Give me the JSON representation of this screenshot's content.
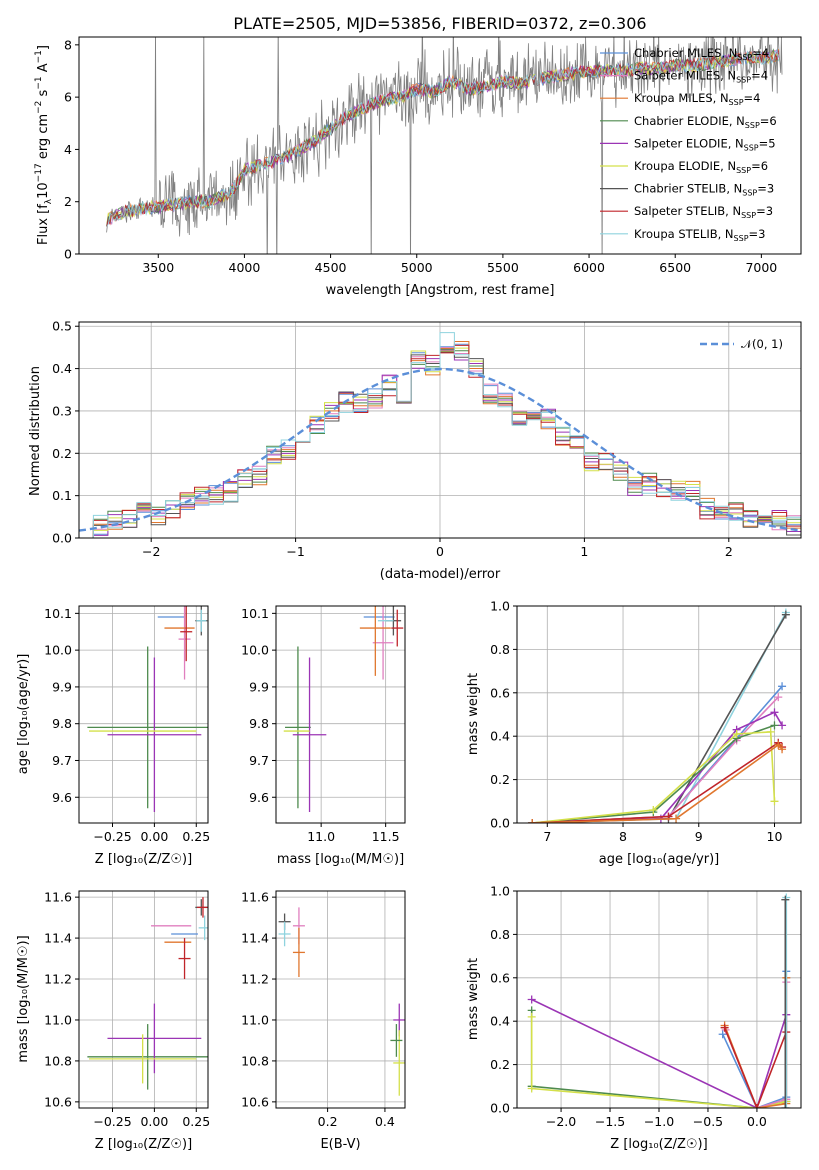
{
  "title": "PLATE=2505, MJD=53856, FIBERID=0372, z=0.306",
  "models": [
    {
      "name": "Chabrier MILES",
      "nssp": "4",
      "color": "#5b8fd8"
    },
    {
      "name": "Salpeter MILES",
      "nssp": "4",
      "color": "#e07fbf"
    },
    {
      "name": "Kroupa MILES",
      "nssp": "4",
      "color": "#e0772f"
    },
    {
      "name": "Chabrier ELODIE",
      "nssp": "6",
      "color": "#4e8a4e"
    },
    {
      "name": "Salpeter ELODIE",
      "nssp": "5",
      "color": "#9b35b5"
    },
    {
      "name": "Kroupa ELODIE",
      "nssp": "6",
      "color": "#d4e04a"
    },
    {
      "name": "Chabrier STELIB",
      "nssp": "3",
      "color": "#555555"
    },
    {
      "name": "Salpeter STELIB",
      "nssp": "3",
      "color": "#c0252a"
    },
    {
      "name": "Kroupa STELIB",
      "nssp": "3",
      "color": "#8fd3de"
    }
  ],
  "spectrum": {
    "xlabel": "wavelength [Angstrom, rest frame]",
    "ylabel_main": "Flux [f",
    "ylabel_sub": "λ",
    "ylabel_rest": "10",
    "ylabel_exp1": "−17",
    "ylabel_mid": " erg cm",
    "ylabel_exp2": "−2",
    "ylabel_mid2": " s",
    "ylabel_exp3": "−1",
    "ylabel_end": " A",
    "ylabel_exp4": "−1",
    "ylabel_close": "]",
    "xticks": [
      "3500",
      "4000",
      "4500",
      "5000",
      "5500",
      "6000",
      "6500",
      "7000"
    ],
    "yticks": [
      "0",
      "2",
      "4",
      "6",
      "8"
    ],
    "legend_sub": "SSP"
  },
  "chart_data": [
    {
      "type": "line",
      "title": "PLATE=2505, MJD=53856, FIBERID=0372, z=0.306",
      "xlabel": "wavelength [Angstrom, rest frame]",
      "ylabel": "Flux [fλ 10^-17 erg cm^-2 s^-1 A^-1]",
      "xlim": [
        3040,
        7230
      ],
      "ylim": [
        0,
        8.3
      ],
      "model_anchor_x": [
        3200,
        3300,
        3400,
        3500,
        3600,
        3700,
        3800,
        3900,
        3950,
        4000,
        4100,
        4200,
        4300,
        4400,
        4500,
        4600,
        4700,
        4800,
        4900,
        5000,
        5100,
        5200,
        5300,
        5400,
        5500,
        5600,
        5700,
        5800,
        5900,
        6000,
        6100,
        6200,
        6300,
        6400,
        6500,
        6600,
        6700,
        6800,
        6900,
        7000,
        7100
      ],
      "model_anchor_y": [
        1.3,
        1.6,
        1.75,
        1.8,
        1.9,
        2.0,
        2.0,
        2.3,
        2.6,
        3.2,
        3.4,
        3.6,
        3.9,
        4.3,
        4.8,
        5.3,
        5.6,
        5.9,
        6.0,
        6.3,
        6.2,
        6.6,
        6.3,
        6.4,
        6.6,
        6.5,
        6.7,
        6.8,
        6.9,
        7.0,
        7.0,
        7.0,
        7.1,
        7.1,
        7.2,
        7.2,
        7.3,
        7.4,
        7.5,
        7.5,
        7.6
      ],
      "data_noise_amplitude": 1.2
    },
    {
      "type": "line",
      "xlabel": "(data-model)/error",
      "ylabel": "Normed distribution",
      "xlim": [
        -2.5,
        2.5
      ],
      "ylim": [
        0,
        0.51
      ],
      "xticks": [
        "−2",
        "−1",
        "0",
        "1",
        "2"
      ],
      "yticks": [
        "0.0",
        "0.1",
        "0.2",
        "0.3",
        "0.4",
        "0.5"
      ],
      "legend": "𝒩(0, 1)",
      "bin_edges": [
        -2.5,
        -2.4,
        -2.3,
        -2.2,
        -2.1,
        -2.0,
        -1.9,
        -1.8,
        -1.7,
        -1.6,
        -1.5,
        -1.4,
        -1.3,
        -1.2,
        -1.1,
        -1.0,
        -0.9,
        -0.8,
        -0.7,
        -0.6,
        -0.5,
        -0.4,
        -0.3,
        -0.2,
        -0.1,
        0.0,
        0.1,
        0.2,
        0.3,
        0.4,
        0.5,
        0.6,
        0.7,
        0.8,
        0.9,
        1.0,
        1.1,
        1.2,
        1.3,
        1.4,
        1.5,
        1.6,
        1.7,
        1.8,
        1.9,
        2.0,
        2.1,
        2.2,
        2.3,
        2.4,
        2.5
      ],
      "hist_values": [
        0.02,
        0.03,
        0.04,
        0.05,
        0.06,
        0.05,
        0.07,
        0.09,
        0.1,
        0.1,
        0.11,
        0.14,
        0.15,
        0.2,
        0.21,
        0.23,
        0.27,
        0.3,
        0.32,
        0.32,
        0.33,
        0.36,
        0.33,
        0.42,
        0.41,
        0.46,
        0.44,
        0.4,
        0.34,
        0.33,
        0.29,
        0.29,
        0.28,
        0.24,
        0.22,
        0.18,
        0.18,
        0.16,
        0.12,
        0.13,
        0.12,
        0.11,
        0.11,
        0.07,
        0.06,
        0.06,
        0.05,
        0.04,
        0.04,
        0.03
      ]
    },
    {
      "type": "scatter",
      "xlabel": "Z [log10(Z/Z☉)]",
      "ylabel": "age [log10(age/yr)]",
      "xlim": [
        -0.45,
        0.32
      ],
      "ylim": [
        9.53,
        10.12
      ],
      "xticks": [
        "−0.25",
        "0.00",
        "0.25"
      ],
      "yticks": [
        "9.6",
        "9.7",
        "9.8",
        "9.9",
        "10.0",
        "10.1"
      ],
      "points": [
        {
          "x": 0.1,
          "xerr": 0.08,
          "y": 10.09,
          "yerr": 0.0,
          "color": "#5b8fd8"
        },
        {
          "x": 0.18,
          "xerr": 0.0,
          "y": 10.03,
          "yerr": 0.11,
          "color": "#e07fbf"
        },
        {
          "x": 0.15,
          "xerr": 0.09,
          "y": 10.06,
          "yerr": 0.0,
          "color": "#e0772f"
        },
        {
          "x": -0.04,
          "xerr": 0.36,
          "y": 9.79,
          "yerr": 0.22,
          "color": "#4e8a4e"
        },
        {
          "x": 0.0,
          "xerr": 0.28,
          "y": 9.77,
          "yerr": 0.21,
          "color": "#9b35b5"
        },
        {
          "x": -0.07,
          "xerr": 0.32,
          "y": 9.78,
          "yerr": 0.0,
          "color": "#d4e04a"
        },
        {
          "x": 0.28,
          "xerr": 0.0,
          "y": 10.08,
          "yerr": 0.04,
          "color": "#555555"
        },
        {
          "x": 0.19,
          "xerr": 0.0,
          "y": 10.05,
          "yerr": 0.08,
          "color": "#c0252a"
        },
        {
          "x": 0.28,
          "xerr": 0.03,
          "y": 10.08,
          "yerr": 0.03,
          "color": "#8fd3de"
        }
      ]
    },
    {
      "type": "scatter",
      "xlabel": "mass [log10(M/M☉)]",
      "xlim": [
        10.65,
        11.65
      ],
      "ylim": [
        9.53,
        10.12
      ],
      "xticks": [
        "11.0",
        "11.5"
      ],
      "yticks": [
        "9.6",
        "9.7",
        "9.8",
        "9.9",
        "10.0",
        "10.1"
      ],
      "points": [
        {
          "x": 11.45,
          "xerr": 0.12,
          "y": 10.09,
          "yerr": 0.0,
          "color": "#5b8fd8"
        },
        {
          "x": 11.48,
          "xerr": 0.08,
          "y": 10.02,
          "yerr": 0.1,
          "color": "#e07fbf"
        },
        {
          "x": 11.42,
          "xerr": 0.12,
          "y": 10.06,
          "yerr": 0.13,
          "color": "#e0772f"
        },
        {
          "x": 10.82,
          "xerr": 0.1,
          "y": 9.79,
          "yerr": 0.22,
          "color": "#4e8a4e"
        },
        {
          "x": 10.91,
          "xerr": 0.13,
          "y": 9.77,
          "yerr": 0.21,
          "color": "#9b35b5"
        },
        {
          "x": 10.81,
          "xerr": 0.1,
          "y": 9.78,
          "yerr": 0.0,
          "color": "#d4e04a"
        },
        {
          "x": 11.56,
          "xerr": 0.06,
          "y": 10.08,
          "yerr": 0.04,
          "color": "#555555"
        },
        {
          "x": 11.59,
          "xerr": 0.0,
          "y": 10.06,
          "yerr": 0.05,
          "color": "#c0252a"
        },
        {
          "x": 11.5,
          "xerr": 0.06,
          "y": 10.08,
          "yerr": 0.0,
          "color": "#8fd3de"
        }
      ]
    },
    {
      "type": "line",
      "xlabel": "age [log10(age/yr)]",
      "ylabel": "mass weight",
      "xlim": [
        6.6,
        10.35
      ],
      "ylim": [
        0,
        1.0
      ],
      "xticks": [
        "7",
        "8",
        "9",
        "10"
      ],
      "yticks": [
        "0.0",
        "0.2",
        "0.4",
        "0.6",
        "0.8",
        "1.0"
      ],
      "series": [
        {
          "color": "#8fd3de",
          "x": [
            6.8,
            8.7,
            10.15
          ],
          "y": [
            0.0,
            0.02,
            0.97
          ]
        },
        {
          "color": "#555555",
          "x": [
            6.8,
            8.6,
            10.15
          ],
          "y": [
            0.0,
            0.02,
            0.96
          ]
        },
        {
          "color": "#5b8fd8",
          "x": [
            6.8,
            8.6,
            10.1
          ],
          "y": [
            0.0,
            0.03,
            0.63
          ]
        },
        {
          "color": "#e07fbf",
          "x": [
            6.8,
            8.6,
            9.5,
            10.05
          ],
          "y": [
            0.0,
            0.03,
            0.38,
            0.58
          ]
        },
        {
          "color": "#9b35b5",
          "x": [
            6.8,
            8.5,
            9.5,
            10.0,
            10.1
          ],
          "y": [
            0.0,
            0.02,
            0.43,
            0.51,
            0.45
          ]
        },
        {
          "color": "#4e8a4e",
          "x": [
            6.8,
            8.4,
            9.5,
            10.0
          ],
          "y": [
            0.0,
            0.05,
            0.39,
            0.45
          ]
        },
        {
          "color": "#d4e04a",
          "x": [
            6.8,
            8.4,
            9.5,
            9.95,
            10.0
          ],
          "y": [
            0.0,
            0.06,
            0.41,
            0.42,
            0.1
          ]
        },
        {
          "color": "#c0252a",
          "x": [
            6.8,
            8.6,
            10.05,
            10.1
          ],
          "y": [
            0.0,
            0.03,
            0.37,
            0.35
          ]
        },
        {
          "color": "#e0772f",
          "x": [
            6.8,
            8.7,
            10.05,
            10.1
          ],
          "y": [
            0.0,
            0.02,
            0.36,
            0.34
          ]
        }
      ]
    },
    {
      "type": "scatter",
      "xlabel": "Z [log10(Z/Z☉)]",
      "ylabel": "mass [log10(M/M☉)]",
      "xlim": [
        -0.45,
        0.32
      ],
      "ylim": [
        10.57,
        11.63
      ],
      "xticks": [
        "−0.25",
        "0.00",
        "0.25"
      ],
      "yticks": [
        "10.6",
        "10.8",
        "11.0",
        "11.2",
        "11.4",
        "11.6"
      ],
      "points": [
        {
          "x": 0.18,
          "xerr": 0.08,
          "y": 11.42,
          "yerr": 0.0,
          "color": "#5b8fd8"
        },
        {
          "x": 0.1,
          "xerr": 0.12,
          "y": 11.46,
          "yerr": 0.0,
          "color": "#e07fbf"
        },
        {
          "x": 0.14,
          "xerr": 0.08,
          "y": 11.38,
          "yerr": 0.0,
          "color": "#e0772f"
        },
        {
          "x": -0.04,
          "xerr": 0.36,
          "y": 10.82,
          "yerr": 0.16,
          "color": "#4e8a4e"
        },
        {
          "x": 0.0,
          "xerr": 0.28,
          "y": 10.91,
          "yerr": 0.17,
          "color": "#9b35b5"
        },
        {
          "x": -0.07,
          "xerr": 0.32,
          "y": 10.81,
          "yerr": 0.12,
          "color": "#d4e04a"
        },
        {
          "x": 0.28,
          "xerr": 0.0,
          "y": 11.55,
          "yerr": 0.04,
          "color": "#555555"
        },
        {
          "x": 0.29,
          "xerr": 0.0,
          "y": 11.55,
          "yerr": 0.05,
          "color": "#c0252a"
        },
        {
          "x": 0.3,
          "xerr": 0.0,
          "y": 11.45,
          "yerr": 0.06,
          "color": "#8fd3de"
        },
        {
          "x": 0.18,
          "xerr": 0.0,
          "y": 11.3,
          "yerr": 0.1,
          "color": "#c0252a"
        }
      ]
    },
    {
      "type": "scatter",
      "xlabel": "E(B-V)",
      "xlim": [
        0.02,
        0.47
      ],
      "ylim": [
        10.57,
        11.63
      ],
      "xticks": [
        "0.2",
        "0.4"
      ],
      "yticks": [
        "10.6",
        "10.8",
        "11.0",
        "11.2",
        "11.4",
        "11.6"
      ],
      "points": [
        {
          "x": 0.05,
          "xerr": 0.0,
          "y": 11.48,
          "yerr": 0.04,
          "color": "#555555"
        },
        {
          "x": 0.05,
          "xerr": 0.0,
          "y": 11.42,
          "yerr": 0.06,
          "color": "#8fd3de"
        },
        {
          "x": 0.1,
          "xerr": 0.0,
          "y": 11.46,
          "yerr": 0.09,
          "color": "#e07fbf"
        },
        {
          "x": 0.1,
          "xerr": 0.0,
          "y": 11.33,
          "yerr": 0.12,
          "color": "#e0772f"
        },
        {
          "x": 0.45,
          "xerr": 0.0,
          "y": 11.0,
          "yerr": 0.08,
          "color": "#9b35b5"
        },
        {
          "x": 0.45,
          "xerr": 0.0,
          "y": 10.79,
          "yerr": 0.16,
          "color": "#d4e04a"
        },
        {
          "x": 0.44,
          "xerr": 0.0,
          "y": 10.9,
          "yerr": 0.08,
          "color": "#4e8a4e"
        }
      ]
    },
    {
      "type": "line",
      "xlabel": "Z [log10(Z/Z☉)]",
      "ylabel": "mass weight",
      "xlim": [
        -2.45,
        0.45
      ],
      "ylim": [
        0,
        1.0
      ],
      "xticks": [
        "−2.0",
        "−1.5",
        "−1.0",
        "−0.5",
        "0.0"
      ],
      "yticks": [
        "0.0",
        "0.2",
        "0.4",
        "0.6",
        "0.8",
        "1.0"
      ],
      "series": [
        {
          "color": "#9b35b5",
          "x": [
            -2.3,
            0.0,
            0.3
          ],
          "y": [
            0.5,
            0.0,
            0.43
          ]
        },
        {
          "color": "#4e8a4e",
          "x": [
            -2.3,
            -2.3,
            0.0,
            0.3
          ],
          "y": [
            0.45,
            0.1,
            0.0,
            0.03
          ]
        },
        {
          "color": "#d4e04a",
          "x": [
            -2.3,
            -2.3,
            0.0,
            0.3
          ],
          "y": [
            0.42,
            0.09,
            0.0,
            0.03
          ]
        },
        {
          "color": "#5b8fd8",
          "x": [
            -0.35,
            0.0,
            0.3,
            0.3
          ],
          "y": [
            0.34,
            0.0,
            0.05,
            0.63
          ]
        },
        {
          "color": "#e07fbf",
          "x": [
            -0.32,
            0.0,
            0.3,
            0.3
          ],
          "y": [
            0.36,
            0.0,
            0.04,
            0.58
          ]
        },
        {
          "color": "#e0772f",
          "x": [
            -0.33,
            0.0,
            0.3,
            0.3
          ],
          "y": [
            0.38,
            0.0,
            0.02,
            0.6
          ]
        },
        {
          "color": "#c0252a",
          "x": [
            -0.33,
            0.0,
            0.3
          ],
          "y": [
            0.37,
            0.0,
            0.35
          ]
        },
        {
          "color": "#8fd3de",
          "x": [
            0.3,
            0.3
          ],
          "y": [
            0.0,
            0.97
          ]
        },
        {
          "color": "#555555",
          "x": [
            0.29,
            0.29
          ],
          "y": [
            0.0,
            0.96
          ]
        }
      ]
    }
  ]
}
